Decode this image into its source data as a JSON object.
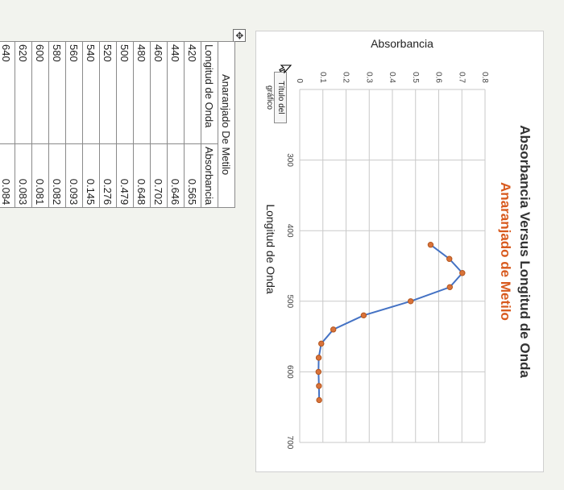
{
  "chart_data": {
    "type": "line",
    "title": "Absorbancia Versus Longitud de Onda",
    "subtitle": "Anaranjado de Metilo",
    "xlabel": "Longitud de Onda",
    "ylabel": "Absorbancia",
    "x": [
      420,
      440,
      460,
      480,
      500,
      520,
      540,
      560,
      580,
      600,
      620,
      640
    ],
    "y": [
      0.565,
      0.646,
      0.702,
      0.648,
      0.479,
      0.276,
      0.145,
      0.093,
      0.082,
      0.081,
      0.083,
      0.084
    ],
    "xlim": [
      200,
      700
    ],
    "ylim": [
      0,
      0.8
    ],
    "x_ticks": [
      "300",
      "400",
      "500",
      "600",
      "700"
    ],
    "y_ticks": [
      "0",
      "0.1",
      "0.2",
      "0.3",
      "0.4",
      "0.5",
      "0.6",
      "0.7",
      "0.8"
    ],
    "grid": true,
    "line_color": "#4472c4",
    "marker_color": "#d9733a"
  },
  "chart_title_box": {
    "label": "Título del gráfico"
  },
  "table": {
    "caption": "Anaranjado De Metilo",
    "headers": [
      "Longitud de Onda",
      "Absorbancia"
    ],
    "rows": [
      [
        "420",
        "0.565"
      ],
      [
        "440",
        "0.646"
      ],
      [
        "460",
        "0.702"
      ],
      [
        "480",
        "0.648"
      ],
      [
        "500",
        "0.479"
      ],
      [
        "520",
        "0.276"
      ],
      [
        "540",
        "0.145"
      ],
      [
        "560",
        "0.093"
      ],
      [
        "580",
        "0.082"
      ],
      [
        "600",
        "0.081"
      ],
      [
        "620",
        "0.083"
      ],
      [
        "640",
        "0.084"
      ]
    ]
  },
  "icons": {
    "table_handle": "move-handle-icon",
    "cursor": "mouse-pointer-icon"
  }
}
